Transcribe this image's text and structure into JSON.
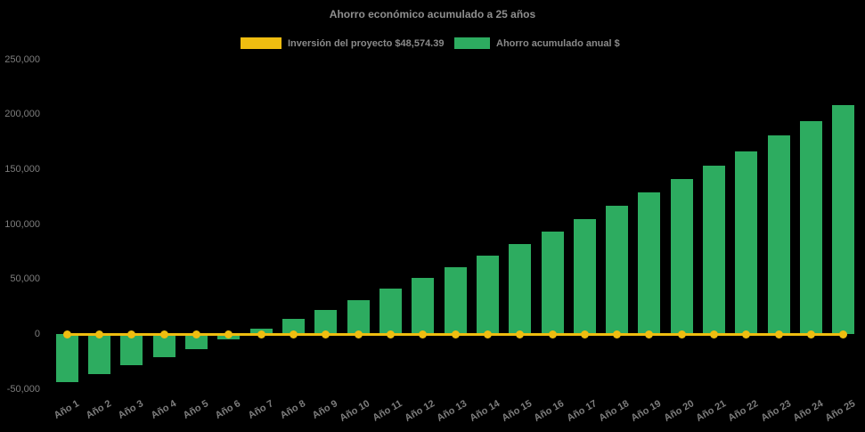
{
  "title": "Ahorro económico acumulado a 25 años",
  "legend": {
    "position": "top",
    "items": [
      {
        "label": "Inversión del proyecto $48,574.39",
        "swatch_color": "#EFBD10"
      },
      {
        "label": "Ahorro acumulado anual $",
        "swatch_color": "#2DAC60"
      }
    ]
  },
  "colors": {
    "background": "#000000",
    "bar_green": "#2DAC60",
    "line_yellow": "#EFBD10",
    "axis_text": "#7d7d7d",
    "title_text": "#8f8f8f"
  },
  "chart_data": {
    "type": "bar",
    "title": "Ahorro económico acumulado a 25 años",
    "xlabel": "",
    "ylabel": "",
    "ylim": [
      -50000,
      250000
    ],
    "grid": false,
    "legend_position": "top",
    "xlabel_rotation_deg": -30,
    "background": "#000000",
    "categories": [
      "Año 1",
      "Año 2",
      "Año 3",
      "Año 4",
      "Año 5",
      "Año 6",
      "Año 7",
      "Año 8",
      "Año 9",
      "Año 10",
      "Año 11",
      "Año 12",
      "Año 13",
      "Año 14",
      "Año 15",
      "Año 16",
      "Año 17",
      "Año 18",
      "Año 19",
      "Año 20",
      "Año 21",
      "Año 22",
      "Año 23",
      "Año 24",
      "Año 25"
    ],
    "yticks": [
      {
        "label": "250,000",
        "value": 250000
      },
      {
        "label": "200,000",
        "value": 200000
      },
      {
        "label": "150,000",
        "value": 150000
      },
      {
        "label": "100,000",
        "value": 100000
      },
      {
        "label": "50,000",
        "value": 50000
      },
      {
        "label": "0",
        "value": 0
      },
      {
        "label": "-50,000",
        "value": -50000
      }
    ],
    "series": [
      {
        "name": "Inversión del proyecto $48,574.39",
        "type": "line",
        "color": "#EFBD10",
        "marker": "circle",
        "values": [
          0,
          0,
          0,
          0,
          0,
          0,
          0,
          0,
          0,
          0,
          0,
          0,
          0,
          0,
          0,
          0,
          0,
          0,
          0,
          0,
          0,
          0,
          0,
          0,
          0
        ]
      },
      {
        "name": "Ahorro acumulado anual $",
        "type": "bar",
        "color": "#2DAC60",
        "values": [
          -43400,
          -36100,
          -28100,
          -20500,
          -13100,
          -4200,
          5200,
          14000,
          22600,
          31300,
          41600,
          51200,
          61500,
          71600,
          81800,
          93800,
          104900,
          116700,
          128900,
          141100,
          153200,
          166800,
          180900,
          194400,
          208500
        ]
      }
    ]
  }
}
